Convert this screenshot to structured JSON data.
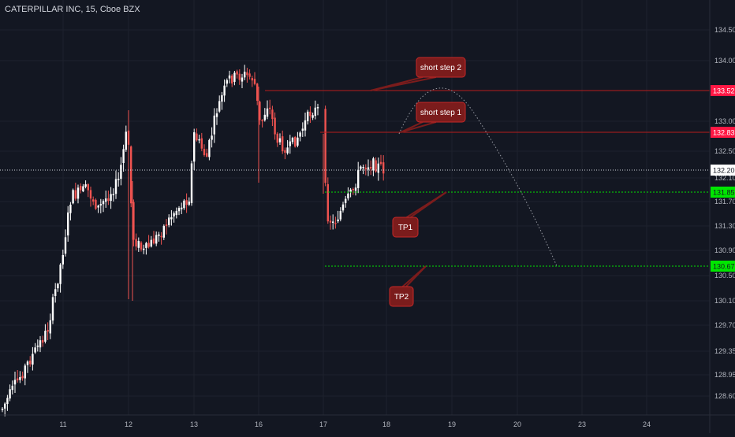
{
  "header": {
    "title": "CATERPILLAR INC, 15, Cboe BZX"
  },
  "colors": {
    "background": "#131722",
    "up_candle": "#ffffff",
    "down_candle": "#ef5350",
    "resistance_line": "#b71c1c",
    "target_line": "#00e600",
    "label_bg": "#7b1c1c",
    "red_tag": "#ff1744",
    "green_tag": "#00e600"
  },
  "chart_data": {
    "type": "candlestick",
    "x_tick_labels": [
      "11",
      "12",
      "13",
      "16",
      "17",
      "18",
      "19",
      "20",
      "23",
      "24"
    ],
    "y_tick_labels": [
      "134.50",
      "134.00",
      "133.00",
      "132.50",
      "132.10",
      "131.70",
      "131.30",
      "130.90",
      "130.50",
      "130.10",
      "129.70",
      "129.35",
      "128.95",
      "128.60"
    ],
    "ylim": [
      128.35,
      134.85
    ],
    "last_price": "132.20",
    "price_tags": [
      {
        "value": "133.52",
        "color": "red"
      },
      {
        "value": "132.83",
        "color": "red"
      },
      {
        "value": "131.85",
        "color": "green"
      },
      {
        "value": "130.67",
        "color": "green"
      }
    ],
    "annotations": [
      "short step 2",
      "short step 1",
      "TP1",
      "TP2"
    ]
  }
}
